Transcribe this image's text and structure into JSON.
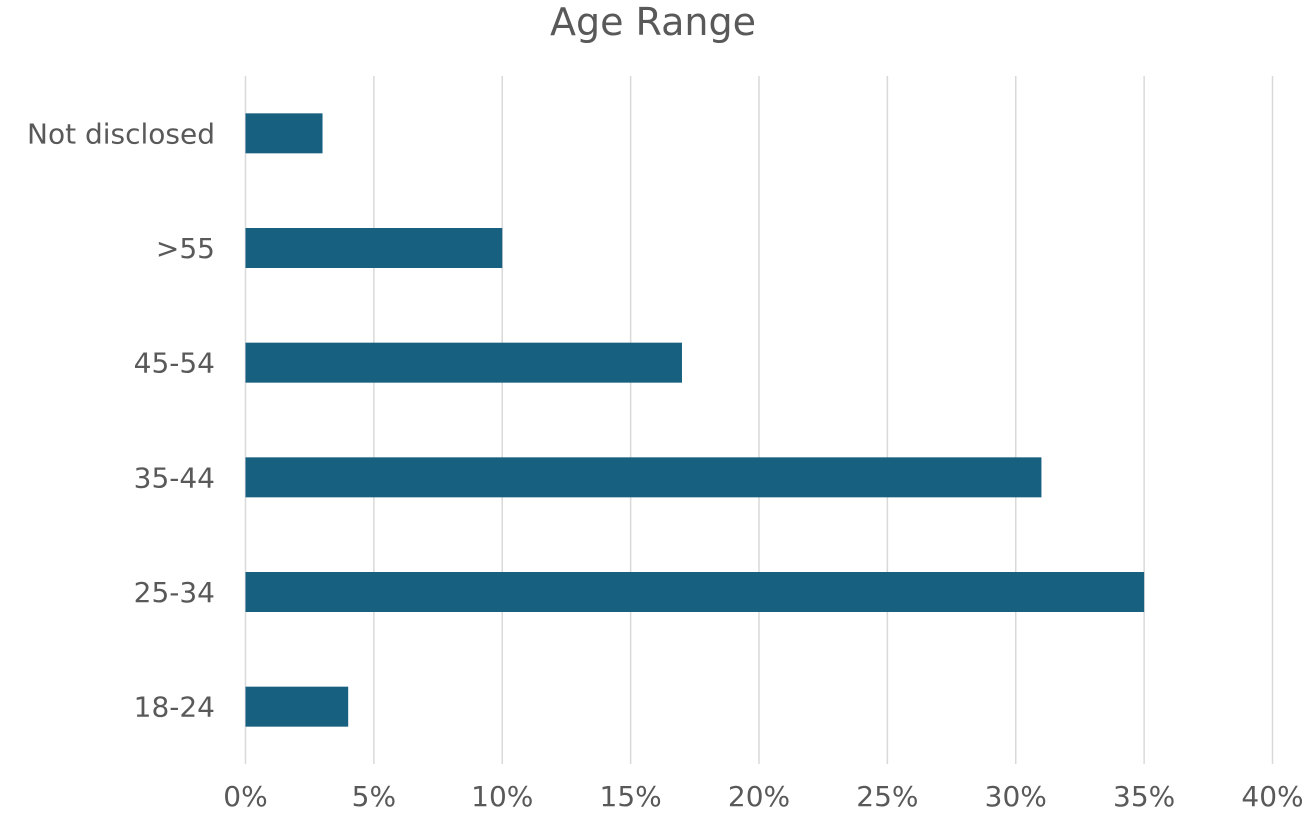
{
  "chart_data": {
    "type": "bar",
    "orientation": "horizontal",
    "title": "Age Range",
    "categories": [
      "18-24",
      "25-34",
      "35-44",
      "45-54",
      ">55",
      "Not disclosed"
    ],
    "values": [
      4,
      35,
      31,
      17,
      10,
      3
    ],
    "value_format": "percent",
    "xlim": [
      0,
      40
    ],
    "xticks": [
      "0%",
      "5%",
      "10%",
      "15%",
      "20%",
      "25%",
      "30%",
      "35%",
      "40%"
    ],
    "xtick_values": [
      0,
      5,
      10,
      15,
      20,
      25,
      30,
      35,
      40
    ],
    "xlabel": "",
    "ylabel": "",
    "grid": "vertical",
    "legend": "none",
    "colors": {
      "bar": "#17607f",
      "grid": "#d9d9d9",
      "text": "#595959"
    }
  }
}
